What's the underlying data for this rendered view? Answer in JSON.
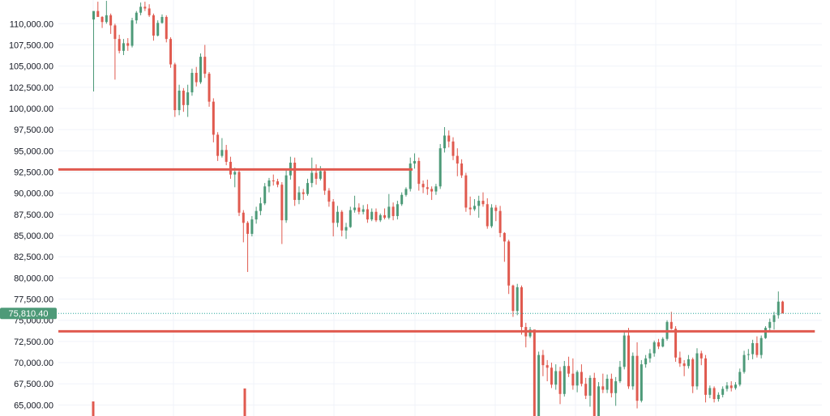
{
  "colors": {
    "up": "#26a69a",
    "up_body": "#4d9a78",
    "down": "#e05a4f",
    "level_line": "#e05a4f",
    "grid": "#f0f3fa",
    "price_tag_bg": "#4d9a78"
  },
  "chart_data": {
    "type": "candlestick",
    "title": "",
    "xlabel": "",
    "ylabel": "",
    "ylim": [
      63700,
      112800
    ],
    "y_ticks": [
      "110,000.00",
      "107,500.00",
      "105,000.00",
      "102,500.00",
      "100,000.00",
      "97,500.00",
      "95,000.00",
      "92,500.00",
      "90,000.00",
      "87,500.00",
      "85,000.00",
      "82,500.00",
      "80,000.00",
      "77,500.00",
      "75,000.00",
      "72,500.00",
      "70,000.00",
      "67,500.00",
      "65,000.00"
    ],
    "grid": true,
    "last_price": 75810.4,
    "last_price_label": "75,810.40",
    "horizontal_levels": [
      {
        "price": 92800,
        "x_start_index": 0,
        "x_end_index": 66
      },
      {
        "price": 73700,
        "x_start_index": 0,
        "x_end_index": 160
      }
    ],
    "candles": [
      [
        110500,
        111200,
        102000,
        111500
      ],
      [
        111500,
        112600,
        111000,
        110800
      ],
      [
        110800,
        110900,
        109500,
        110200
      ],
      [
        110200,
        112700,
        110000,
        111000
      ],
      [
        111000,
        111200,
        108800,
        109800
      ],
      [
        109800,
        110000,
        103400,
        108200
      ],
      [
        108200,
        108700,
        106500,
        106800
      ],
      [
        106800,
        108200,
        106300,
        107700
      ],
      [
        107700,
        108300,
        106800,
        107400
      ],
      [
        107400,
        110700,
        107200,
        110400
      ],
      [
        110400,
        111500,
        110000,
        111300
      ],
      [
        111300,
        112500,
        111000,
        112000
      ],
      [
        112000,
        112600,
        111500,
        111800
      ],
      [
        111800,
        112300,
        110800,
        111000
      ],
      [
        111000,
        111200,
        108000,
        108600
      ],
      [
        108600,
        110400,
        108500,
        110100
      ],
      [
        110100,
        111100,
        110000,
        110800
      ],
      [
        110800,
        111000,
        107800,
        108200
      ],
      [
        108200,
        108400,
        104800,
        105200
      ],
      [
        105200,
        105400,
        99000,
        99800
      ],
      [
        99800,
        102800,
        99200,
        102100
      ],
      [
        102100,
        102400,
        99600,
        100400
      ],
      [
        100400,
        102800,
        99000,
        101900
      ],
      [
        101900,
        104700,
        101500,
        104200
      ],
      [
        104200,
        104900,
        102600,
        103100
      ],
      [
        103100,
        106500,
        102900,
        106100
      ],
      [
        106100,
        107500,
        103600,
        104100
      ],
      [
        104100,
        104300,
        100200,
        100800
      ],
      [
        100800,
        101200,
        96000,
        96900
      ],
      [
        96900,
        97200,
        93800,
        94400
      ],
      [
        94400,
        96500,
        94200,
        95100
      ],
      [
        95100,
        95700,
        93300,
        93700
      ],
      [
        93700,
        94300,
        91700,
        92200
      ],
      [
        92200,
        93000,
        90700,
        92500
      ],
      [
        92500,
        92800,
        87300,
        87700
      ],
      [
        87700,
        88000,
        84200,
        86500
      ],
      [
        86500,
        86700,
        80700,
        85200
      ],
      [
        85200,
        87300,
        84900,
        86900
      ],
      [
        86900,
        88400,
        86400,
        87900
      ],
      [
        87900,
        89500,
        87400,
        88800
      ],
      [
        88800,
        91200,
        88600,
        90800
      ],
      [
        90800,
        91800,
        90100,
        91500
      ],
      [
        91500,
        92200,
        90900,
        91400
      ],
      [
        91400,
        91700,
        90700,
        91000
      ],
      [
        91000,
        91300,
        84000,
        86800
      ],
      [
        86800,
        92800,
        86500,
        92100
      ],
      [
        92100,
        94300,
        91600,
        93600
      ],
      [
        93600,
        94200,
        88500,
        89200
      ],
      [
        89200,
        90800,
        88700,
        90100
      ],
      [
        90100,
        90500,
        89200,
        89900
      ],
      [
        89900,
        91700,
        89700,
        91200
      ],
      [
        91200,
        94200,
        90700,
        92400
      ],
      [
        92400,
        93400,
        91000,
        91700
      ],
      [
        91700,
        93200,
        91500,
        92600
      ],
      [
        92600,
        92900,
        89800,
        90300
      ],
      [
        90300,
        90600,
        88400,
        89000
      ],
      [
        89000,
        89300,
        84900,
        86500
      ],
      [
        86500,
        88500,
        86000,
        87800
      ],
      [
        87800,
        88000,
        84900,
        85600
      ],
      [
        85600,
        86500,
        84600,
        86000
      ],
      [
        86000,
        88400,
        85900,
        88000
      ],
      [
        88000,
        89700,
        87700,
        88300
      ],
      [
        88300,
        88800,
        87500,
        87800
      ],
      [
        87800,
        88600,
        87500,
        88100
      ],
      [
        88100,
        88700,
        86500,
        86900
      ],
      [
        86900,
        88200,
        86700,
        87800
      ],
      [
        87800,
        88200,
        86600,
        86800
      ],
      [
        86800,
        87600,
        86600,
        87400
      ],
      [
        87400,
        88200,
        86900,
        87100
      ],
      [
        87100,
        89900,
        86900,
        88400
      ],
      [
        88400,
        88900,
        86800,
        87300
      ],
      [
        87300,
        89100,
        86900,
        88700
      ],
      [
        88700,
        90100,
        88500,
        89800
      ],
      [
        89800,
        90700,
        89600,
        90500
      ],
      [
        90500,
        94200,
        90200,
        93500
      ],
      [
        93500,
        94700,
        92900,
        93800
      ],
      [
        93800,
        94200,
        90300,
        91100
      ],
      [
        91100,
        91500,
        90000,
        90700
      ],
      [
        90700,
        91600,
        89800,
        90500
      ],
      [
        90500,
        90800,
        89200,
        90200
      ],
      [
        90200,
        91100,
        89800,
        90800
      ],
      [
        90800,
        95800,
        90500,
        95300
      ],
      [
        95300,
        97800,
        94800,
        96800
      ],
      [
        96800,
        97400,
        95400,
        96100
      ],
      [
        96100,
        96600,
        93900,
        94400
      ],
      [
        94400,
        95300,
        92000,
        93500
      ],
      [
        93500,
        94000,
        91800,
        92100
      ],
      [
        92100,
        92400,
        87800,
        88300
      ],
      [
        88300,
        89600,
        87400,
        88100
      ],
      [
        88100,
        89300,
        87900,
        88500
      ],
      [
        88500,
        89700,
        87100,
        89100
      ],
      [
        89100,
        90100,
        88400,
        88700
      ],
      [
        88700,
        89400,
        85800,
        86100
      ],
      [
        86100,
        88700,
        85900,
        88300
      ],
      [
        88300,
        88600,
        86700,
        87900
      ],
      [
        87900,
        88500,
        84800,
        85300
      ],
      [
        85300,
        85400,
        81900,
        84300
      ],
      [
        84300,
        84500,
        78100,
        79100
      ],
      [
        79100,
        79200,
        75400,
        76100
      ],
      [
        76100,
        79300,
        75600,
        78900
      ],
      [
        78900,
        79100,
        73300,
        74200
      ],
      [
        74200,
        74700,
        71800,
        73100
      ],
      [
        73100,
        74200,
        72900,
        73900
      ],
      [
        73900,
        73600,
        63100,
        63500
      ],
      [
        63500,
        71300,
        63200,
        70900
      ],
      [
        70900,
        71500,
        68400,
        69700
      ],
      [
        69700,
        70300,
        67800,
        69400
      ],
      [
        69400,
        70000,
        67000,
        67400
      ],
      [
        67400,
        69800,
        66800,
        69000
      ],
      [
        69000,
        69500,
        65100,
        66300
      ],
      [
        66300,
        70200,
        66000,
        69600
      ],
      [
        69600,
        70700,
        68300,
        68700
      ],
      [
        68700,
        70500,
        66800,
        67300
      ],
      [
        67300,
        69100,
        66500,
        68900
      ],
      [
        68900,
        69800,
        67200,
        67500
      ],
      [
        67500,
        68200,
        65700,
        66100
      ],
      [
        66100,
        68500,
        64800,
        68200
      ],
      [
        68200,
        68800,
        63200,
        63600
      ],
      [
        63600,
        67700,
        63100,
        67200
      ],
      [
        67200,
        68700,
        66400,
        66800
      ],
      [
        66800,
        68600,
        66400,
        68100
      ],
      [
        68100,
        68700,
        65900,
        66400
      ],
      [
        66400,
        68300,
        64900,
        67800
      ],
      [
        67800,
        70200,
        67600,
        69500
      ],
      [
        69500,
        73800,
        69200,
        73200
      ],
      [
        73200,
        74100,
        66900,
        67200
      ],
      [
        67200,
        71200,
        66800,
        70800
      ],
      [
        70800,
        72400,
        64600,
        65500
      ],
      [
        65500,
        70300,
        65300,
        69800
      ],
      [
        69800,
        70900,
        69400,
        70500
      ],
      [
        70500,
        71600,
        70000,
        71100
      ],
      [
        71100,
        72600,
        70700,
        72400
      ],
      [
        72400,
        72800,
        71600,
        71900
      ],
      [
        71900,
        73000,
        71800,
        72800
      ],
      [
        72800,
        75000,
        72600,
        74800
      ],
      [
        74800,
        76000,
        73900,
        74000
      ],
      [
        74000,
        74300,
        70100,
        70600
      ],
      [
        70600,
        71300,
        69500,
        69900
      ],
      [
        69900,
        70300,
        68400,
        69600
      ],
      [
        69600,
        70900,
        69300,
        70400
      ],
      [
        70400,
        70600,
        66400,
        67200
      ],
      [
        67200,
        71700,
        66800,
        71100
      ],
      [
        71100,
        71400,
        69700,
        70500
      ],
      [
        70500,
        70900,
        65300,
        66200
      ],
      [
        66200,
        67300,
        65800,
        67000
      ],
      [
        67000,
        67200,
        65300,
        65700
      ],
      [
        65700,
        66500,
        65400,
        66200
      ],
      [
        66200,
        67200,
        65900,
        66900
      ],
      [
        66900,
        67700,
        66600,
        67300
      ],
      [
        67300,
        67800,
        66600,
        67000
      ],
      [
        67000,
        67700,
        66800,
        67400
      ],
      [
        67400,
        69300,
        67200,
        68900
      ],
      [
        68900,
        71400,
        68700,
        70900
      ],
      [
        70900,
        71600,
        70300,
        71000
      ],
      [
        71000,
        72700,
        70400,
        72300
      ],
      [
        72300,
        73100,
        70600,
        70900
      ],
      [
        70900,
        73200,
        70500,
        72900
      ],
      [
        72900,
        74300,
        72800,
        74100
      ],
      [
        74100,
        75200,
        73700,
        74800
      ],
      [
        74800,
        76000,
        73900,
        75600
      ],
      [
        75600,
        78400,
        75200,
        77200
      ],
      [
        77200,
        77300,
        75800,
        75810
      ]
    ]
  }
}
